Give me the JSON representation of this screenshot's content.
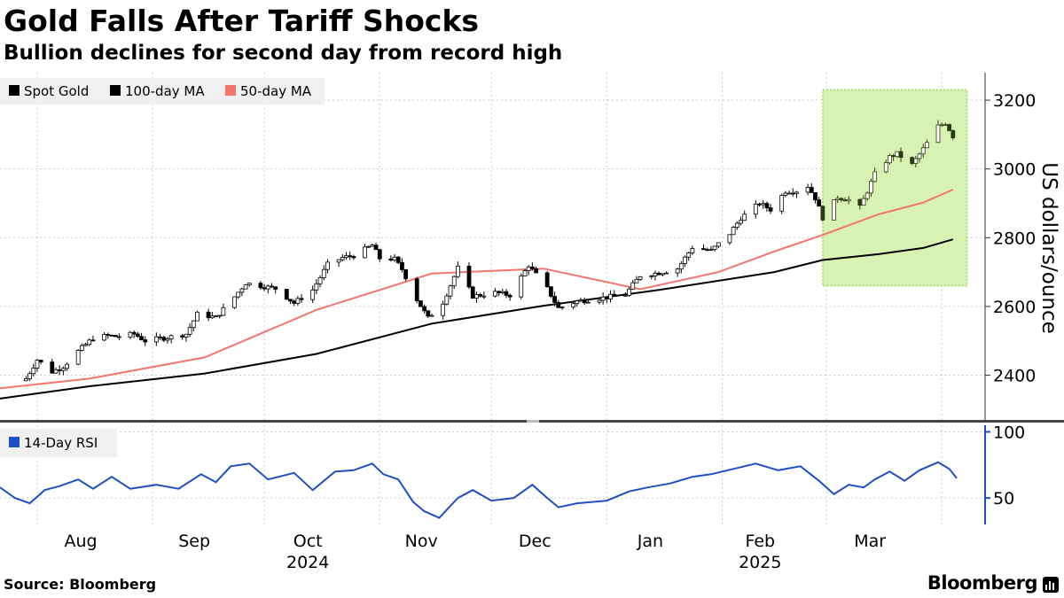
{
  "header": {
    "title": "Gold Falls After Tariff Shocks",
    "subtitle": "Bullion declines for second day from record high"
  },
  "footer": {
    "source": "Source: Bloomberg",
    "brand": "Bloomberg"
  },
  "colors": {
    "candle": "#000000",
    "ma100": "#000000",
    "ma50": "#f4756b",
    "rsi": "#1f4fc4",
    "highlight_fill": "#d8f2b3",
    "highlight_border": "#9ad65c",
    "grid": "#cccccc"
  },
  "chart_data": [
    {
      "type": "candlestick",
      "title": "Gold Falls After Tariff Shocks",
      "subtitle": "Bullion declines for second day from record high",
      "ylabel": "US dollars/ounce",
      "ylim": [
        2270,
        3280
      ],
      "yticks": [
        2400,
        2600,
        2800,
        3000,
        3200
      ],
      "x_axis": {
        "months": [
          "Aug",
          "Sep",
          "Oct",
          "Nov",
          "Dec",
          "Jan",
          "Feb",
          "Mar"
        ],
        "years": [
          {
            "label": "2024",
            "under": "Oct"
          },
          {
            "label": "2025",
            "under": "Feb"
          }
        ]
      },
      "legend": {
        "position": "top-left",
        "items": [
          {
            "label": "Spot Gold",
            "series": "spot"
          },
          {
            "label": "100-day MA",
            "series": "ma100"
          },
          {
            "label": "50-day MA",
            "series": "ma50"
          }
        ]
      },
      "highlight_region": {
        "from": "2025-02-28",
        "to": "2025-04-03",
        "ymin": 2660,
        "ymax": 3230
      },
      "series": [
        {
          "name": "Spot Gold",
          "key": "spot",
          "style": "candlestick",
          "close_points": [
            [
              "2024-07-29",
              2390
            ],
            [
              "2024-08-01",
              2445
            ],
            [
              "2024-08-05",
              2410
            ],
            [
              "2024-08-08",
              2425
            ],
            [
              "2024-08-12",
              2470
            ],
            [
              "2024-08-16",
              2508
            ],
            [
              "2024-08-20",
              2515
            ],
            [
              "2024-08-23",
              2512
            ],
            [
              "2024-08-27",
              2520
            ],
            [
              "2024-08-30",
              2500
            ],
            [
              "2024-09-05",
              2510
            ],
            [
              "2024-09-10",
              2520
            ],
            [
              "2024-09-13",
              2578
            ],
            [
              "2024-09-18",
              2568
            ],
            [
              "2024-09-23",
              2628
            ],
            [
              "2024-09-26",
              2668
            ],
            [
              "2024-09-30",
              2660
            ],
            [
              "2024-10-04",
              2652
            ],
            [
              "2024-10-09",
              2610
            ],
            [
              "2024-10-14",
              2648
            ],
            [
              "2024-10-18",
              2722
            ],
            [
              "2024-10-22",
              2742
            ],
            [
              "2024-10-25",
              2748
            ],
            [
              "2024-10-30",
              2778
            ],
            [
              "2024-11-01",
              2740
            ],
            [
              "2024-11-05",
              2738
            ],
            [
              "2024-11-07",
              2708
            ],
            [
              "2024-11-11",
              2620
            ],
            [
              "2024-11-14",
              2566
            ],
            [
              "2024-11-18",
              2612
            ],
            [
              "2024-11-22",
              2712
            ],
            [
              "2024-11-26",
              2630
            ],
            [
              "2024-12-02",
              2640
            ],
            [
              "2024-12-06",
              2633
            ],
            [
              "2024-12-11",
              2720
            ],
            [
              "2024-12-16",
              2652
            ],
            [
              "2024-12-19",
              2595
            ],
            [
              "2024-12-24",
              2615
            ],
            [
              "2024-12-31",
              2625
            ],
            [
              "2025-01-06",
              2635
            ],
            [
              "2025-01-10",
              2690
            ],
            [
              "2025-01-15",
              2698
            ],
            [
              "2025-01-20",
              2710
            ],
            [
              "2025-01-24",
              2772
            ],
            [
              "2025-01-29",
              2762
            ],
            [
              "2025-02-03",
              2812
            ],
            [
              "2025-02-06",
              2857
            ],
            [
              "2025-02-11",
              2900
            ],
            [
              "2025-02-14",
              2882
            ],
            [
              "2025-02-18",
              2935
            ],
            [
              "2025-02-21",
              2936
            ],
            [
              "2025-02-24",
              2950
            ],
            [
              "2025-02-26",
              2915
            ],
            [
              "2025-02-28",
              2858
            ],
            [
              "2025-03-04",
              2918
            ],
            [
              "2025-03-07",
              2910
            ],
            [
              "2025-03-10",
              2888
            ],
            [
              "2025-03-12",
              2935
            ],
            [
              "2025-03-14",
              2985
            ],
            [
              "2025-03-18",
              3035
            ],
            [
              "2025-03-20",
              3044
            ],
            [
              "2025-03-24",
              3012
            ],
            [
              "2025-03-27",
              3058
            ],
            [
              "2025-03-31",
              3124
            ],
            [
              "2025-04-02",
              3134
            ],
            [
              "2025-04-03",
              3115
            ],
            [
              "2025-04-04",
              3095
            ]
          ]
        },
        {
          "name": "100-day MA",
          "key": "ma100",
          "style": "line",
          "points": [
            [
              "2024-07-22",
              2332
            ],
            [
              "2024-08-15",
              2368
            ],
            [
              "2024-09-15",
              2405
            ],
            [
              "2024-10-15",
              2462
            ],
            [
              "2024-11-15",
              2550
            ],
            [
              "2024-12-15",
              2602
            ],
            [
              "2025-01-15",
              2648
            ],
            [
              "2025-02-15",
              2700
            ],
            [
              "2025-02-28",
              2735
            ],
            [
              "2025-03-15",
              2752
            ],
            [
              "2025-03-27",
              2770
            ],
            [
              "2025-04-04",
              2795
            ]
          ]
        },
        {
          "name": "50-day MA",
          "key": "ma50",
          "style": "line",
          "points": [
            [
              "2024-07-22",
              2362
            ],
            [
              "2024-08-15",
              2390
            ],
            [
              "2024-09-15",
              2452
            ],
            [
              "2024-10-15",
              2590
            ],
            [
              "2024-11-15",
              2696
            ],
            [
              "2024-12-15",
              2710
            ],
            [
              "2025-01-10",
              2650
            ],
            [
              "2025-01-31",
              2700
            ],
            [
              "2025-02-15",
              2760
            ],
            [
              "2025-02-28",
              2808
            ],
            [
              "2025-03-15",
              2868
            ],
            [
              "2025-03-27",
              2902
            ],
            [
              "2025-04-04",
              2940
            ]
          ]
        }
      ]
    },
    {
      "type": "line",
      "title": "14-Day RSI",
      "ylim": [
        30,
        105
      ],
      "yticks": [
        50,
        100
      ],
      "legend": {
        "position": "top-left",
        "items": [
          {
            "label": "14-Day RSI",
            "series": "rsi"
          }
        ]
      },
      "series": [
        {
          "name": "14-Day RSI",
          "key": "rsi",
          "points": [
            [
              "2024-07-22",
              58
            ],
            [
              "2024-07-26",
              50
            ],
            [
              "2024-07-30",
              46
            ],
            [
              "2024-08-03",
              56
            ],
            [
              "2024-08-07",
              59
            ],
            [
              "2024-08-12",
              64
            ],
            [
              "2024-08-16",
              57
            ],
            [
              "2024-08-21",
              66
            ],
            [
              "2024-08-26",
              57
            ],
            [
              "2024-09-02",
              60
            ],
            [
              "2024-09-08",
              57
            ],
            [
              "2024-09-14",
              68
            ],
            [
              "2024-09-18",
              62
            ],
            [
              "2024-09-22",
              74
            ],
            [
              "2024-09-27",
              76
            ],
            [
              "2024-10-02",
              64
            ],
            [
              "2024-10-09",
              69
            ],
            [
              "2024-10-14",
              56
            ],
            [
              "2024-10-20",
              70
            ],
            [
              "2024-10-25",
              71
            ],
            [
              "2024-10-30",
              76
            ],
            [
              "2024-11-02",
              68
            ],
            [
              "2024-11-06",
              64
            ],
            [
              "2024-11-10",
              47
            ],
            [
              "2024-11-13",
              40
            ],
            [
              "2024-11-17",
              35
            ],
            [
              "2024-11-22",
              50
            ],
            [
              "2024-11-26",
              56
            ],
            [
              "2024-12-01",
              48
            ],
            [
              "2024-12-07",
              50
            ],
            [
              "2024-12-12",
              60
            ],
            [
              "2024-12-16",
              50
            ],
            [
              "2024-12-19",
              43
            ],
            [
              "2024-12-24",
              46
            ],
            [
              "2025-01-01",
              48
            ],
            [
              "2025-01-07",
              55
            ],
            [
              "2025-01-12",
              58
            ],
            [
              "2025-01-18",
              61
            ],
            [
              "2025-01-24",
              66
            ],
            [
              "2025-01-29",
              68
            ],
            [
              "2025-02-04",
              72
            ],
            [
              "2025-02-10",
              76
            ],
            [
              "2025-02-16",
              71
            ],
            [
              "2025-02-22",
              74
            ],
            [
              "2025-02-27",
              63
            ],
            [
              "2025-03-03",
              53
            ],
            [
              "2025-03-07",
              60
            ],
            [
              "2025-03-11",
              58
            ],
            [
              "2025-03-14",
              64
            ],
            [
              "2025-03-18",
              70
            ],
            [
              "2025-03-22",
              63
            ],
            [
              "2025-03-26",
              71
            ],
            [
              "2025-03-31",
              77
            ],
            [
              "2025-04-03",
              72
            ],
            [
              "2025-04-05",
              65
            ]
          ]
        }
      ]
    }
  ]
}
